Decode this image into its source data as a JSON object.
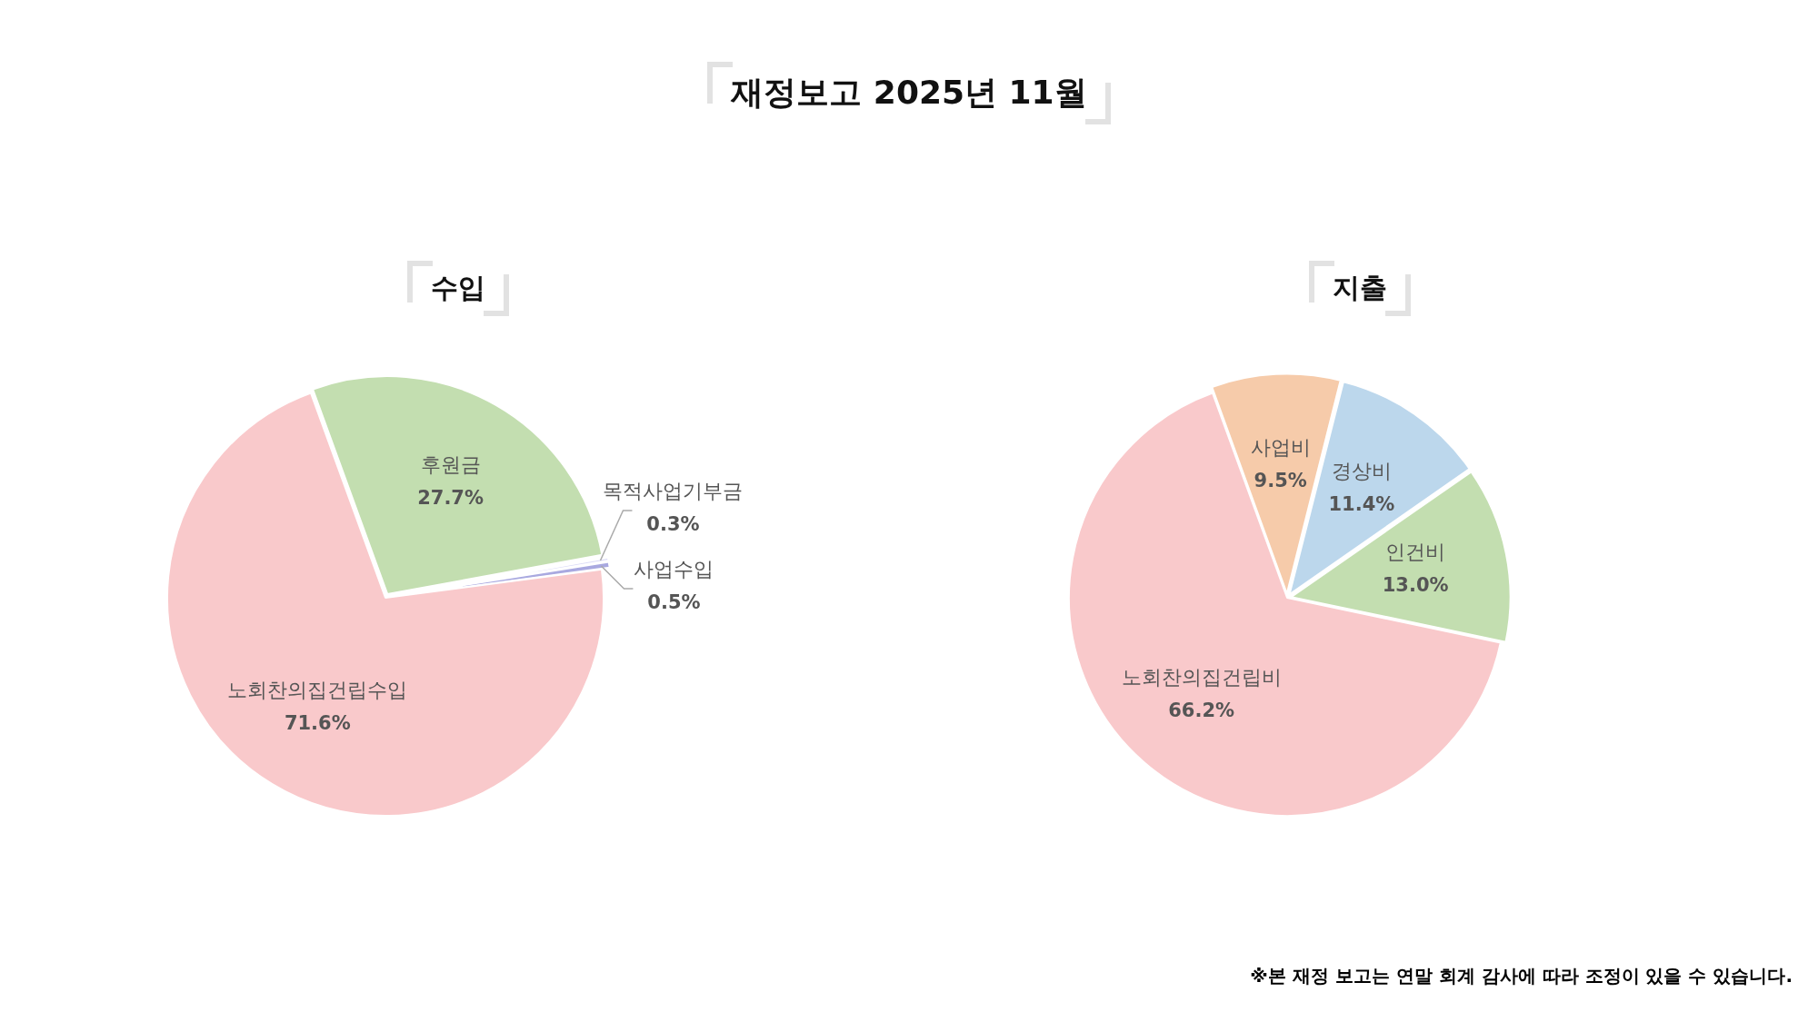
{
  "chart_data": [
    {
      "type": "pie",
      "title": "수입",
      "annotations": [
        "재정보고 2025년 11월"
      ],
      "categories": [
        "후원금",
        "목적사업기부금",
        "사업수입",
        "노회찬의집건립수입"
      ],
      "values": [
        27.7,
        0.3,
        0.5,
        71.6
      ],
      "value_labels": [
        "27.7%",
        "0.3%",
        "0.5%",
        "71.6%"
      ],
      "colors": [
        "#c3deb0",
        "#dcdcf7",
        "#a9a9e0",
        "#f9c9cb"
      ]
    },
    {
      "type": "pie",
      "title": "지출",
      "annotations": [
        "※본 재정 보고는 연말 회계 감사에 따라 조정이 있을 수 있습니다."
      ],
      "categories": [
        "사업비",
        "경상비",
        "인건비",
        "노회찬의집건립비"
      ],
      "values": [
        9.5,
        11.4,
        13.0,
        66.2
      ],
      "value_labels": [
        "9.5%",
        "11.4%",
        "13.0%",
        "66.2%"
      ],
      "colors": [
        "#f6cbaa",
        "#bcd7ec",
        "#c3deb0",
        "#f9c9cb"
      ]
    }
  ]
}
